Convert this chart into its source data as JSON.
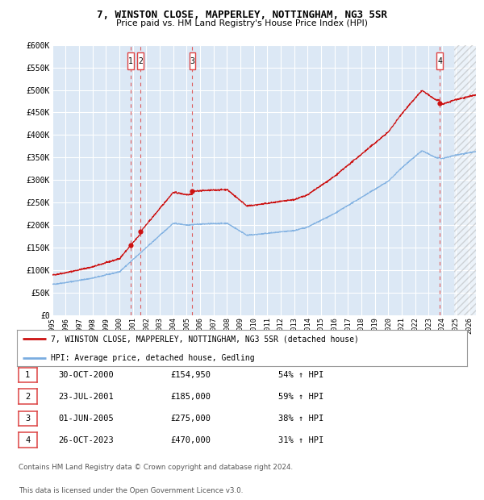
{
  "title": "7, WINSTON CLOSE, MAPPERLEY, NOTTINGHAM, NG3 5SR",
  "subtitle": "Price paid vs. HM Land Registry's House Price Index (HPI)",
  "legend_line1": "7, WINSTON CLOSE, MAPPERLEY, NOTTINGHAM, NG3 5SR (detached house)",
  "legend_line2": "HPI: Average price, detached house, Gedling",
  "footer1": "Contains HM Land Registry data © Crown copyright and database right 2024.",
  "footer2": "This data is licensed under the Open Government Licence v3.0.",
  "transactions": [
    {
      "num": 1,
      "date": "30-OCT-2000",
      "price": 154950,
      "price_str": "£154,950",
      "pct": "54%",
      "year": 2000.83
    },
    {
      "num": 2,
      "date": "23-JUL-2001",
      "price": 185000,
      "price_str": "£185,000",
      "pct": "59%",
      "year": 2001.56
    },
    {
      "num": 3,
      "date": "01-JUN-2005",
      "price": 275000,
      "price_str": "£275,000",
      "pct": "38%",
      "year": 2005.42
    },
    {
      "num": 4,
      "date": "26-OCT-2023",
      "price": 470000,
      "price_str": "£470,000",
      "pct": "31%",
      "year": 2023.82
    }
  ],
  "hpi_color": "#7aade0",
  "price_color": "#cc1111",
  "bg_color": "#ffffff",
  "plot_bg": "#dce8f5",
  "grid_color": "#ffffff",
  "dashed_color": "#dd4444",
  "ylim": [
    0,
    600000
  ],
  "xlim_start": 1995.0,
  "xlim_end": 2026.5,
  "yticks": [
    0,
    50000,
    100000,
    150000,
    200000,
    250000,
    300000,
    350000,
    400000,
    450000,
    500000,
    550000,
    600000
  ],
  "ytick_labels": [
    "£0",
    "£50K",
    "£100K",
    "£150K",
    "£200K",
    "£250K",
    "£300K",
    "£350K",
    "£400K",
    "£450K",
    "£500K",
    "£550K",
    "£600K"
  ],
  "xticks": [
    1995,
    1996,
    1997,
    1998,
    1999,
    2000,
    2001,
    2002,
    2003,
    2004,
    2005,
    2006,
    2007,
    2008,
    2009,
    2010,
    2011,
    2012,
    2013,
    2014,
    2015,
    2016,
    2017,
    2018,
    2019,
    2020,
    2021,
    2022,
    2023,
    2024,
    2025,
    2026
  ]
}
